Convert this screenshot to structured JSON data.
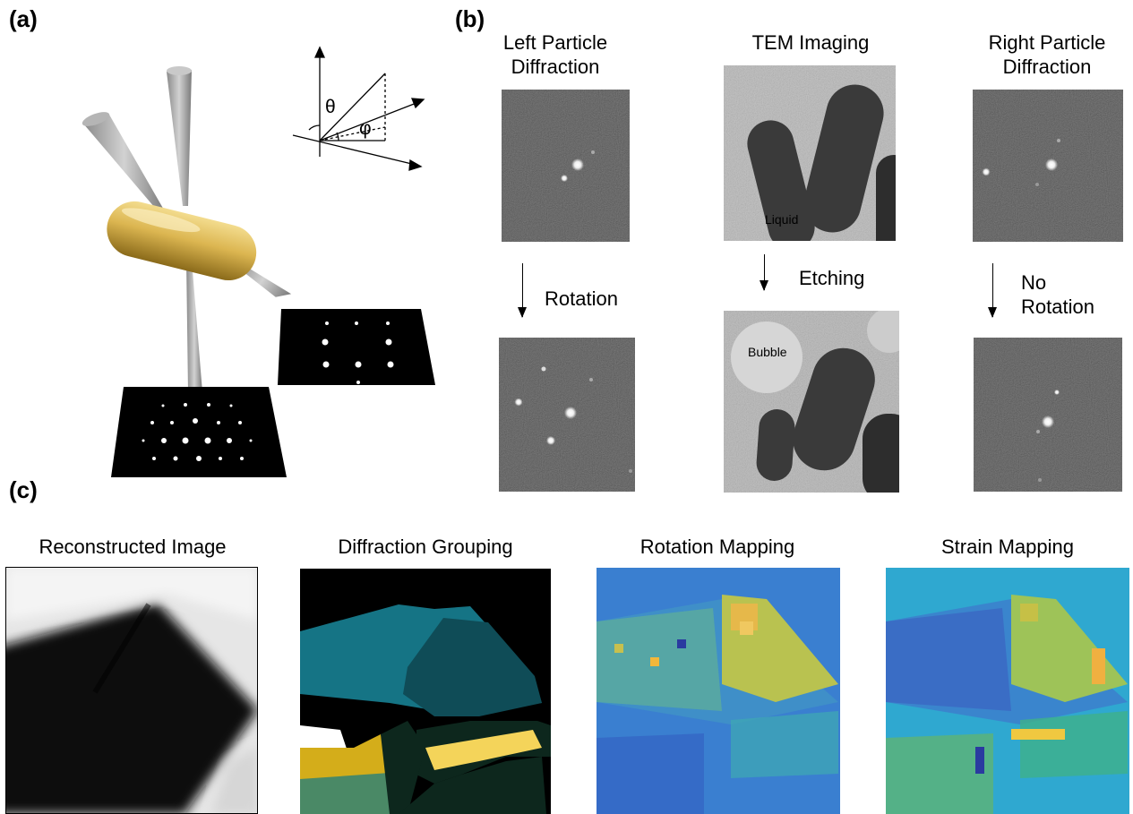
{
  "panels": {
    "a": "(a)",
    "b": "(b)",
    "c": "(c)"
  },
  "geometry_diagram": {
    "theta": "θ",
    "phi": "φ"
  },
  "panel_b": {
    "left_title": [
      "Left Particle",
      "Diffraction"
    ],
    "middle_title": "TEM Imaging",
    "right_title": [
      "Right Particle",
      "Diffraction"
    ],
    "left_transition": "Rotation",
    "middle_transition": "Etching",
    "right_transition": [
      "No",
      "Rotation"
    ],
    "liquid_label": "Liquid",
    "bubble_label": "Bubble"
  },
  "panel_c": {
    "titles": [
      "Reconstructed Image",
      "Diffraction Grouping",
      "Rotation Mapping",
      "Strain Mapping"
    ]
  },
  "colors": {
    "gold": "#e0bc55",
    "teal_light": "#157485",
    "teal_dark": "#0f4c57",
    "yellow_bright": "#f4d45a",
    "yellow_dark": "#d4ad1a",
    "green_light": "#4a8966",
    "green_dark": "#0d271d",
    "map_blue": "#3a7fd0",
    "map_cyan": "#2fa8d0"
  }
}
